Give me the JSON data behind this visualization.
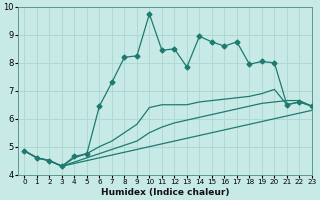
{
  "title": "",
  "xlabel": "Humidex (Indice chaleur)",
  "bg_color": "#c8eae6",
  "grid_color": "#b0d8d4",
  "line_color": "#1e7a70",
  "xlim": [
    -0.5,
    23
  ],
  "ylim": [
    4,
    10
  ],
  "yticks": [
    4,
    5,
    6,
    7,
    8,
    9,
    10
  ],
  "xticks": [
    0,
    1,
    2,
    3,
    4,
    5,
    6,
    7,
    8,
    9,
    10,
    11,
    12,
    13,
    14,
    15,
    16,
    17,
    18,
    19,
    20,
    21,
    22,
    23
  ],
  "series": [
    {
      "x": [
        0,
        1,
        2,
        3,
        4,
        5,
        6,
        7,
        8,
        9,
        10,
        11,
        12,
        13,
        14,
        15,
        16,
        17,
        18,
        19,
        20,
        21,
        22,
        23
      ],
      "y": [
        4.85,
        4.6,
        4.5,
        4.3,
        4.4,
        4.5,
        4.6,
        4.7,
        4.8,
        4.9,
        5.0,
        5.1,
        5.2,
        5.3,
        5.4,
        5.5,
        5.6,
        5.7,
        5.8,
        5.9,
        6.0,
        6.1,
        6.2,
        6.3
      ],
      "marker": false
    },
    {
      "x": [
        0,
        1,
        2,
        3,
        4,
        5,
        6,
        7,
        8,
        9,
        10,
        11,
        12,
        13,
        14,
        15,
        16,
        17,
        18,
        19,
        20,
        21,
        22,
        23
      ],
      "y": [
        4.85,
        4.6,
        4.5,
        4.3,
        4.45,
        4.6,
        4.75,
        4.9,
        5.05,
        5.2,
        5.5,
        5.7,
        5.85,
        5.95,
        6.05,
        6.15,
        6.25,
        6.35,
        6.45,
        6.55,
        6.6,
        6.65,
        6.65,
        6.45
      ],
      "marker": false
    },
    {
      "x": [
        0,
        1,
        2,
        3,
        4,
        5,
        6,
        7,
        8,
        9,
        10,
        11,
        12,
        13,
        14,
        15,
        16,
        17,
        18,
        19,
        20,
        21,
        22,
        23
      ],
      "y": [
        4.85,
        4.6,
        4.5,
        4.3,
        4.6,
        4.75,
        5.0,
        5.2,
        5.5,
        5.8,
        6.4,
        6.5,
        6.5,
        6.5,
        6.6,
        6.65,
        6.7,
        6.75,
        6.8,
        6.9,
        7.05,
        6.5,
        6.6,
        6.45
      ],
      "marker": false
    },
    {
      "x": [
        0,
        1,
        2,
        3,
        4,
        5,
        6,
        7,
        8,
        9,
        10,
        11,
        12,
        13,
        14,
        15,
        16,
        17,
        18,
        19,
        20,
        21,
        22,
        23
      ],
      "y": [
        4.85,
        4.6,
        4.5,
        4.3,
        4.65,
        4.75,
        6.45,
        7.3,
        8.2,
        8.25,
        9.75,
        8.45,
        8.5,
        7.85,
        8.95,
        8.75,
        8.6,
        8.75,
        7.95,
        8.05,
        8.0,
        6.5,
        6.6,
        6.45
      ],
      "marker": true
    }
  ]
}
